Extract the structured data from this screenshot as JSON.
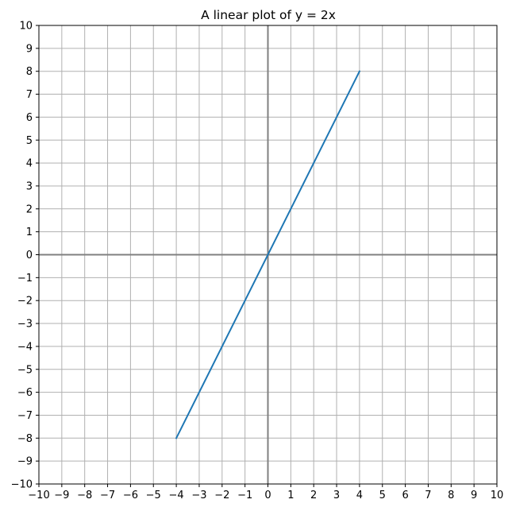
{
  "chart_data": {
    "type": "line",
    "title": "A linear plot of y = 2x",
    "xlabel": "",
    "ylabel": "",
    "xlim": [
      -10,
      10
    ],
    "ylim": [
      -10,
      10
    ],
    "xticks": [
      -10,
      -9,
      -8,
      -7,
      -6,
      -5,
      -4,
      -3,
      -2,
      -1,
      0,
      1,
      2,
      3,
      4,
      5,
      6,
      7,
      8,
      9,
      10
    ],
    "yticks": [
      -10,
      -9,
      -8,
      -7,
      -6,
      -5,
      -4,
      -3,
      -2,
      -1,
      0,
      1,
      2,
      3,
      4,
      5,
      6,
      7,
      8,
      9,
      10
    ],
    "xtick_labels": [
      "−10",
      "−9",
      "−8",
      "−7",
      "−6",
      "−5",
      "−4",
      "−3",
      "−2",
      "−1",
      "0",
      "1",
      "2",
      "3",
      "4",
      "5",
      "6",
      "7",
      "8",
      "9",
      "10"
    ],
    "ytick_labels": [
      "−10",
      "−9",
      "−8",
      "−7",
      "−6",
      "−5",
      "−4",
      "−3",
      "−2",
      "−1",
      "0",
      "1",
      "2",
      "3",
      "4",
      "5",
      "6",
      "7",
      "8",
      "9",
      "10"
    ],
    "grid": true,
    "zero_axes": true,
    "series": [
      {
        "color": "#1f77b4",
        "x": [
          -4,
          4
        ],
        "y": [
          -8,
          8
        ]
      }
    ],
    "colors": {
      "grid": "#b0b0b0",
      "zero_axis": "#808080",
      "frame": "#000000"
    }
  }
}
